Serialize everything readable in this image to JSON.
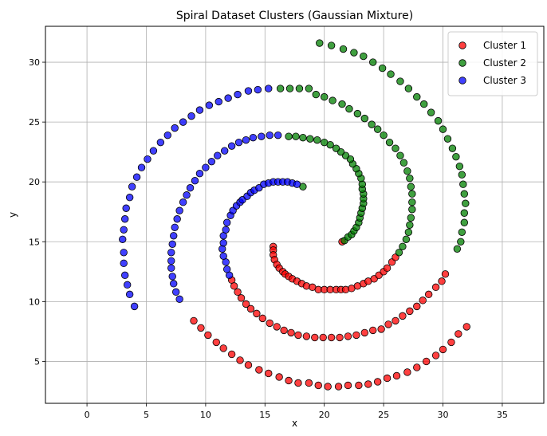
{
  "chart_data": {
    "type": "scatter",
    "title": "Spiral Dataset Clusters (Gaussian Mixture)",
    "xlabel": "x",
    "ylabel": "y",
    "xlim": [
      -3.5,
      38.5
    ],
    "ylim": [
      1.5,
      33.0
    ],
    "xticks": [
      0,
      5,
      10,
      15,
      20,
      25,
      30,
      35
    ],
    "yticks": [
      5,
      10,
      15,
      20,
      25,
      30
    ],
    "grid": true,
    "legend": {
      "position": "top-right"
    },
    "series": [
      {
        "name": "Cluster 1",
        "color": "#ff0000",
        "points": [
          [
            21.5,
            15.0
          ],
          [
            15.7,
            14.6
          ],
          [
            15.7,
            14.3
          ],
          [
            15.7,
            13.9
          ],
          [
            15.8,
            13.5
          ],
          [
            16.0,
            13.1
          ],
          [
            16.2,
            12.8
          ],
          [
            16.5,
            12.5
          ],
          [
            16.7,
            12.3
          ],
          [
            17.0,
            12.1
          ],
          [
            17.3,
            11.9
          ],
          [
            17.7,
            11.7
          ],
          [
            18.1,
            11.5
          ],
          [
            18.5,
            11.3
          ],
          [
            19.0,
            11.2
          ],
          [
            19.5,
            11.0
          ],
          [
            20.0,
            11.0
          ],
          [
            20.5,
            11.0
          ],
          [
            21.0,
            11.0
          ],
          [
            21.4,
            11.0
          ],
          [
            21.8,
            11.0
          ],
          [
            22.3,
            11.1
          ],
          [
            22.8,
            11.3
          ],
          [
            23.3,
            11.5
          ],
          [
            23.7,
            11.7
          ],
          [
            24.2,
            11.9
          ],
          [
            24.6,
            12.2
          ],
          [
            25.0,
            12.5
          ],
          [
            25.3,
            12.8
          ],
          [
            25.7,
            13.3
          ],
          [
            26.0,
            13.7
          ],
          [
            12.2,
            11.8
          ],
          [
            12.4,
            11.3
          ],
          [
            12.7,
            10.8
          ],
          [
            13.0,
            10.3
          ],
          [
            13.4,
            9.8
          ],
          [
            13.8,
            9.4
          ],
          [
            14.3,
            9.0
          ],
          [
            14.8,
            8.6
          ],
          [
            15.4,
            8.2
          ],
          [
            16.0,
            7.9
          ],
          [
            16.6,
            7.6
          ],
          [
            17.2,
            7.4
          ],
          [
            17.8,
            7.2
          ],
          [
            18.5,
            7.1
          ],
          [
            19.2,
            7.0
          ],
          [
            19.9,
            7.0
          ],
          [
            20.6,
            7.0
          ],
          [
            21.3,
            7.0
          ],
          [
            22.0,
            7.1
          ],
          [
            22.7,
            7.2
          ],
          [
            23.4,
            7.4
          ],
          [
            24.1,
            7.6
          ],
          [
            24.8,
            7.7
          ],
          [
            25.4,
            8.1
          ],
          [
            26.0,
            8.4
          ],
          [
            26.6,
            8.8
          ],
          [
            27.2,
            9.2
          ],
          [
            27.8,
            9.6
          ],
          [
            28.3,
            10.1
          ],
          [
            28.8,
            10.6
          ],
          [
            29.4,
            11.2
          ],
          [
            29.9,
            11.7
          ],
          [
            30.2,
            12.3
          ],
          [
            9.0,
            8.4
          ],
          [
            9.6,
            7.8
          ],
          [
            10.2,
            7.2
          ],
          [
            10.9,
            6.6
          ],
          [
            11.5,
            6.1
          ],
          [
            12.2,
            5.6
          ],
          [
            12.9,
            5.1
          ],
          [
            13.6,
            4.7
          ],
          [
            14.5,
            4.3
          ],
          [
            15.3,
            4.0
          ],
          [
            16.2,
            3.7
          ],
          [
            17.0,
            3.4
          ],
          [
            17.8,
            3.2
          ],
          [
            18.7,
            3.2
          ],
          [
            19.5,
            3.0
          ],
          [
            20.3,
            2.9
          ],
          [
            21.2,
            2.9
          ],
          [
            22.0,
            3.0
          ],
          [
            22.9,
            3.0
          ],
          [
            23.7,
            3.1
          ],
          [
            24.5,
            3.3
          ],
          [
            25.3,
            3.6
          ],
          [
            26.1,
            3.8
          ],
          [
            27.0,
            4.1
          ],
          [
            27.8,
            4.5
          ],
          [
            28.6,
            5.0
          ],
          [
            29.4,
            5.5
          ],
          [
            30.0,
            6.0
          ],
          [
            30.7,
            6.6
          ],
          [
            31.3,
            7.3
          ],
          [
            32.0,
            7.9
          ]
        ]
      },
      {
        "name": "Cluster 2",
        "color": "#008000",
        "points": [
          [
            18.2,
            19.6
          ],
          [
            21.7,
            15.1
          ],
          [
            22.0,
            15.4
          ],
          [
            22.3,
            15.6
          ],
          [
            22.5,
            15.9
          ],
          [
            22.7,
            16.2
          ],
          [
            22.9,
            16.6
          ],
          [
            23.0,
            17.0
          ],
          [
            23.1,
            17.4
          ],
          [
            23.2,
            17.8
          ],
          [
            23.3,
            18.2
          ],
          [
            23.3,
            18.6
          ],
          [
            23.3,
            19.0
          ],
          [
            23.2,
            19.4
          ],
          [
            23.2,
            19.8
          ],
          [
            23.1,
            20.3
          ],
          [
            22.9,
            20.7
          ],
          [
            22.7,
            21.1
          ],
          [
            22.4,
            21.5
          ],
          [
            22.2,
            21.9
          ],
          [
            21.8,
            22.2
          ],
          [
            21.4,
            22.5
          ],
          [
            21.0,
            22.8
          ],
          [
            20.5,
            23.1
          ],
          [
            20.0,
            23.3
          ],
          [
            19.4,
            23.5
          ],
          [
            18.8,
            23.6
          ],
          [
            18.2,
            23.7
          ],
          [
            17.6,
            23.8
          ],
          [
            17.0,
            23.8
          ],
          [
            26.3,
            14.1
          ],
          [
            26.6,
            14.6
          ],
          [
            26.9,
            15.2
          ],
          [
            27.1,
            15.8
          ],
          [
            27.2,
            16.4
          ],
          [
            27.3,
            17.0
          ],
          [
            27.4,
            17.7
          ],
          [
            27.4,
            18.3
          ],
          [
            27.4,
            19.0
          ],
          [
            27.3,
            19.6
          ],
          [
            27.2,
            20.3
          ],
          [
            27.0,
            20.9
          ],
          [
            26.7,
            21.6
          ],
          [
            26.4,
            22.2
          ],
          [
            26.0,
            22.8
          ],
          [
            25.5,
            23.3
          ],
          [
            25.0,
            23.9
          ],
          [
            24.5,
            24.4
          ],
          [
            24.0,
            24.8
          ],
          [
            23.4,
            25.3
          ],
          [
            22.8,
            25.7
          ],
          [
            22.1,
            26.1
          ],
          [
            21.5,
            26.5
          ],
          [
            20.7,
            26.8
          ],
          [
            20.0,
            27.1
          ],
          [
            19.3,
            27.3
          ],
          [
            31.2,
            14.4
          ],
          [
            31.5,
            15.0
          ],
          [
            31.6,
            15.8
          ],
          [
            31.8,
            16.6
          ],
          [
            31.8,
            17.4
          ],
          [
            31.9,
            18.2
          ],
          [
            31.8,
            19.0
          ],
          [
            31.7,
            19.8
          ],
          [
            31.6,
            20.6
          ],
          [
            31.4,
            21.3
          ],
          [
            31.1,
            22.1
          ],
          [
            30.8,
            22.8
          ],
          [
            30.4,
            23.6
          ],
          [
            30.0,
            24.4
          ],
          [
            29.6,
            25.1
          ],
          [
            29.0,
            25.8
          ],
          [
            28.4,
            26.5
          ],
          [
            27.8,
            27.1
          ],
          [
            27.1,
            27.8
          ],
          [
            26.4,
            28.4
          ],
          [
            25.6,
            29.0
          ],
          [
            24.9,
            29.5
          ],
          [
            24.1,
            30.0
          ],
          [
            23.3,
            30.5
          ],
          [
            22.5,
            30.8
          ],
          [
            21.6,
            31.1
          ],
          [
            20.6,
            31.4
          ],
          [
            19.6,
            31.6
          ],
          [
            18.7,
            27.8
          ],
          [
            17.9,
            27.8
          ],
          [
            17.1,
            27.8
          ],
          [
            16.3,
            27.8
          ]
        ]
      },
      {
        "name": "Cluster 3",
        "color": "#0000ff",
        "points": [
          [
            12.0,
            12.2
          ],
          [
            11.8,
            12.7
          ],
          [
            11.7,
            13.3
          ],
          [
            11.5,
            13.8
          ],
          [
            11.4,
            14.4
          ],
          [
            11.5,
            14.9
          ],
          [
            11.5,
            15.5
          ],
          [
            11.7,
            16.0
          ],
          [
            11.8,
            16.6
          ],
          [
            12.1,
            17.2
          ],
          [
            12.3,
            17.6
          ],
          [
            12.6,
            18.0
          ],
          [
            12.9,
            18.3
          ],
          [
            13.1,
            18.5
          ],
          [
            13.5,
            18.8
          ],
          [
            13.8,
            19.1
          ],
          [
            14.1,
            19.3
          ],
          [
            14.5,
            19.5
          ],
          [
            14.9,
            19.8
          ],
          [
            15.3,
            19.9
          ],
          [
            15.7,
            20.0
          ],
          [
            16.1,
            20.0
          ],
          [
            16.5,
            20.0
          ],
          [
            16.9,
            20.0
          ],
          [
            17.3,
            19.9
          ],
          [
            17.7,
            19.8
          ],
          [
            7.8,
            10.2
          ],
          [
            7.5,
            10.8
          ],
          [
            7.3,
            11.5
          ],
          [
            7.2,
            12.1
          ],
          [
            7.1,
            12.8
          ],
          [
            7.1,
            13.4
          ],
          [
            7.1,
            14.1
          ],
          [
            7.2,
            14.8
          ],
          [
            7.3,
            15.5
          ],
          [
            7.4,
            16.2
          ],
          [
            7.6,
            16.9
          ],
          [
            7.8,
            17.6
          ],
          [
            8.1,
            18.3
          ],
          [
            8.4,
            18.9
          ],
          [
            8.7,
            19.5
          ],
          [
            9.1,
            20.1
          ],
          [
            9.5,
            20.7
          ],
          [
            10.0,
            21.2
          ],
          [
            10.5,
            21.7
          ],
          [
            11.0,
            22.2
          ],
          [
            11.6,
            22.6
          ],
          [
            12.2,
            23.0
          ],
          [
            12.8,
            23.3
          ],
          [
            13.4,
            23.5
          ],
          [
            14.0,
            23.7
          ],
          [
            14.7,
            23.8
          ],
          [
            15.4,
            23.9
          ],
          [
            16.1,
            23.9
          ],
          [
            4.0,
            9.6
          ],
          [
            3.6,
            10.6
          ],
          [
            3.4,
            11.4
          ],
          [
            3.2,
            12.2
          ],
          [
            3.1,
            13.2
          ],
          [
            3.1,
            14.1
          ],
          [
            3.0,
            15.2
          ],
          [
            3.1,
            16.0
          ],
          [
            3.2,
            16.9
          ],
          [
            3.3,
            17.8
          ],
          [
            3.6,
            18.7
          ],
          [
            3.8,
            19.6
          ],
          [
            4.2,
            20.4
          ],
          [
            4.6,
            21.2
          ],
          [
            5.1,
            21.9
          ],
          [
            5.6,
            22.6
          ],
          [
            6.2,
            23.3
          ],
          [
            6.8,
            23.9
          ],
          [
            7.4,
            24.5
          ],
          [
            8.1,
            25.0
          ],
          [
            8.8,
            25.5
          ],
          [
            9.5,
            26.0
          ],
          [
            10.3,
            26.4
          ],
          [
            11.1,
            26.7
          ],
          [
            11.9,
            27.0
          ],
          [
            12.7,
            27.3
          ],
          [
            13.6,
            27.6
          ],
          [
            14.4,
            27.7
          ],
          [
            15.3,
            27.8
          ]
        ]
      }
    ]
  }
}
